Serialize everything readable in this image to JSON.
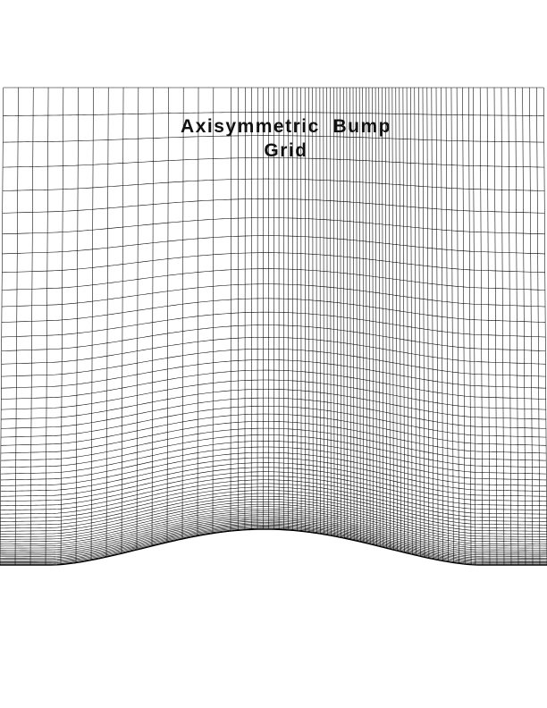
{
  "figure": {
    "title_line1": "Axisymmetric  Bump",
    "title_line2": "Grid"
  },
  "colors": {
    "background": "#ffffff",
    "grid_line": "#000000",
    "title_text": "#111111"
  }
}
